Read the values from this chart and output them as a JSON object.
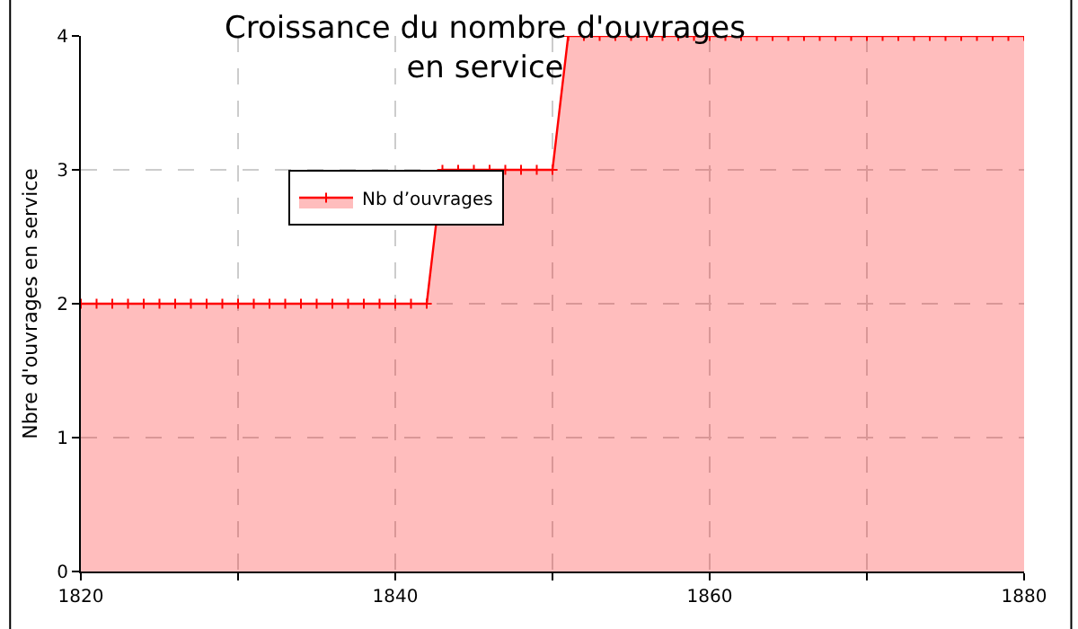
{
  "chart_data": {
    "type": "area",
    "title": "Croissance du nombre d'ouvrages\nen service",
    "ylabel": "Nbre d'ouvrages en service",
    "x": [
      1820,
      1821,
      1822,
      1823,
      1824,
      1825,
      1826,
      1827,
      1828,
      1829,
      1830,
      1831,
      1832,
      1833,
      1834,
      1835,
      1836,
      1837,
      1838,
      1839,
      1840,
      1841,
      1842,
      1843,
      1844,
      1845,
      1846,
      1847,
      1848,
      1849,
      1850,
      1851,
      1852,
      1853,
      1854,
      1855,
      1856,
      1857,
      1858,
      1859,
      1860,
      1861,
      1862,
      1863,
      1864,
      1865,
      1866,
      1867,
      1868,
      1869,
      1870,
      1871,
      1872,
      1873,
      1874,
      1875,
      1876,
      1877,
      1878,
      1879,
      1880
    ],
    "series": [
      {
        "name": "Nb d’ouvrages",
        "color": "#ff0000",
        "values": [
          2,
          2,
          2,
          2,
          2,
          2,
          2,
          2,
          2,
          2,
          2,
          2,
          2,
          2,
          2,
          2,
          2,
          2,
          2,
          2,
          2,
          2,
          2,
          3,
          3,
          3,
          3,
          3,
          3,
          3,
          3,
          4,
          4,
          4,
          4,
          4,
          4,
          4,
          4,
          4,
          4,
          4,
          4,
          4,
          4,
          4,
          4,
          4,
          4,
          4,
          4,
          4,
          4,
          4,
          4,
          4,
          4,
          4,
          4,
          4,
          4
        ]
      }
    ],
    "xlim": [
      1820,
      1880
    ],
    "xticks": [
      1820,
      {
        "value": 1830,
        "label": null
      },
      1840,
      {
        "value": 1850,
        "label": null
      },
      1860,
      {
        "value": 1870,
        "label": null
      },
      1880
    ],
    "ylim": [
      0,
      4
    ],
    "yticks": [
      0,
      1,
      2,
      3,
      4
    ],
    "grid": true,
    "legend": "top left",
    "marker": "cross",
    "line_style": "solid"
  }
}
